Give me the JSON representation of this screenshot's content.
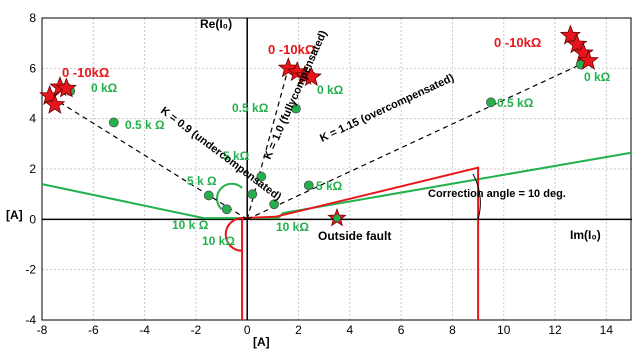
{
  "chart_data": {
    "type": "scatter",
    "title": "",
    "xlim": [
      -8,
      15
    ],
    "ylim": [
      -4,
      8
    ],
    "xticks": [
      -8,
      -6,
      -4,
      -2,
      0,
      2,
      4,
      6,
      8,
      10,
      12,
      14
    ],
    "yticks": [
      -4,
      -2,
      0,
      2,
      4,
      6,
      8
    ],
    "grid": true,
    "xlabel": "Im(I₀)",
    "ylabel": "Re(I₀)",
    "left_unit": "[A]",
    "bottom_unit": "[A]",
    "colors": {
      "green": "#22b14c",
      "red": "#e8161c",
      "grid": "#c8c8c8"
    },
    "series": [
      {
        "name": "K = 0.9 (undercompensated)",
        "points": [
          [
            -6.9,
            5.1
          ],
          [
            -5.2,
            3.85
          ],
          [
            -1.5,
            0.95
          ],
          [
            -0.8,
            0.4
          ]
        ],
        "stars": [
          [
            -7.7,
            4.9
          ],
          [
            -7.5,
            4.55
          ],
          [
            -7.3,
            5.25
          ],
          [
            -7.05,
            5.2
          ]
        ]
      },
      {
        "name": "K = 1.0 (fullycompensated)",
        "points": [
          [
            1.9,
            4.4
          ],
          [
            0.55,
            1.7
          ],
          [
            0.2,
            1.0
          ],
          [
            1.05,
            0.6
          ]
        ],
        "stars": [
          [
            1.6,
            6.0
          ],
          [
            1.95,
            5.85
          ],
          [
            2.25,
            5.7
          ],
          [
            2.5,
            5.65
          ]
        ]
      },
      {
        "name": "K = 1.15 (overcompensated)",
        "points": [
          [
            13.0,
            6.15
          ],
          [
            9.5,
            4.65
          ],
          [
            2.4,
            1.35
          ]
        ],
        "stars": [
          [
            12.6,
            7.3
          ],
          [
            12.85,
            6.95
          ],
          [
            13.1,
            6.6
          ],
          [
            13.3,
            6.3
          ]
        ]
      }
    ],
    "outside_fault": {
      "x": 3.5,
      "y": 0.05,
      "label": "Outside fault"
    },
    "green_characteristic": [
      [
        -8,
        1.4
      ],
      [
        -1.7,
        0.05
      ],
      [
        1.2,
        0.05
      ],
      [
        1.4,
        0.25
      ],
      [
        15,
        2.65
      ]
    ],
    "red_characteristic": [
      [
        -0.2,
        -4
      ],
      [
        -0.2,
        0.05
      ],
      [
        1.1,
        0.1
      ],
      [
        9.0,
        2.05
      ],
      [
        9.0,
        -4
      ]
    ],
    "labels": {
      "r0": "0 -10kΩ",
      "r1": "0 -10kΩ",
      "r2": "0 -10kΩ",
      "k0a": "0 kΩ",
      "k0b": "0 kΩ",
      "k0c": "0 kΩ",
      "k05a": "0.5 k Ω",
      "k05b": "0.5 kΩ",
      "k05c": "0.5 kΩ",
      "k5a": "5 k Ω",
      "k5b": "5 kΩ",
      "k5c": "5 kΩ",
      "k10a": "10 k Ω",
      "k10b": "10 kΩ",
      "k10c": "10 kΩ",
      "correction": "Correction angle = 10 deg."
    }
  }
}
